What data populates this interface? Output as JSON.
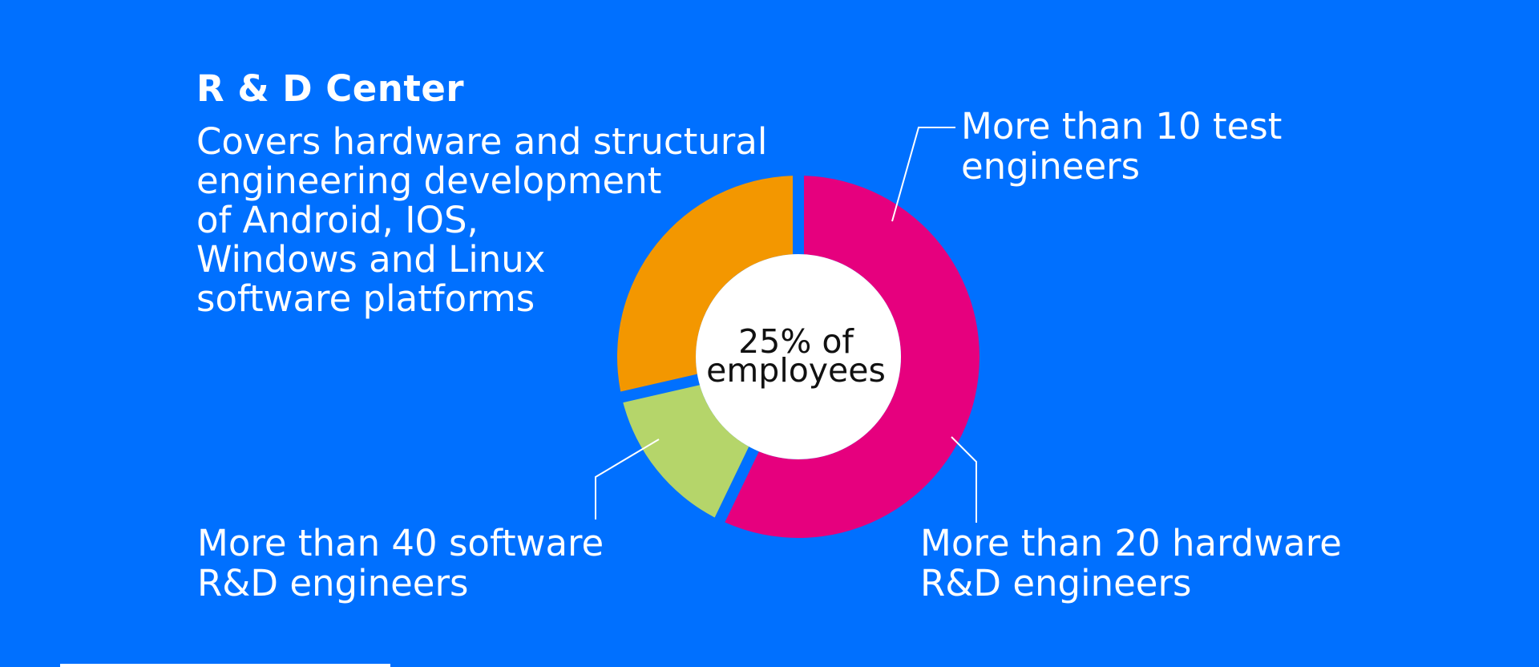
{
  "header": {
    "title": "R & D Center",
    "description_lines": [
      "Covers hardware and structural",
      "engineering development",
      "of Android, IOS,",
      "Windows and Linux",
      "software platforms"
    ]
  },
  "chart_data": {
    "type": "pie",
    "style": "donut",
    "center_label": [
      "25% of",
      "employees"
    ],
    "series": [
      {
        "name_lines": [
          "More than 40 software",
          "R&D engineers"
        ],
        "value": 40,
        "color": "#e6007e"
      },
      {
        "name_lines": [
          "More than 10 test",
          "engineers"
        ],
        "value": 10,
        "color": "#b5d56a"
      },
      {
        "name_lines": [
          "More than 20 hardware",
          "R&D engineers"
        ],
        "value": 20,
        "color": "#f39700"
      }
    ]
  },
  "colors": {
    "background": "#0070ff",
    "text": "#ffffff",
    "center_fill": "#ffffff",
    "leader_line": "#ffffff"
  }
}
